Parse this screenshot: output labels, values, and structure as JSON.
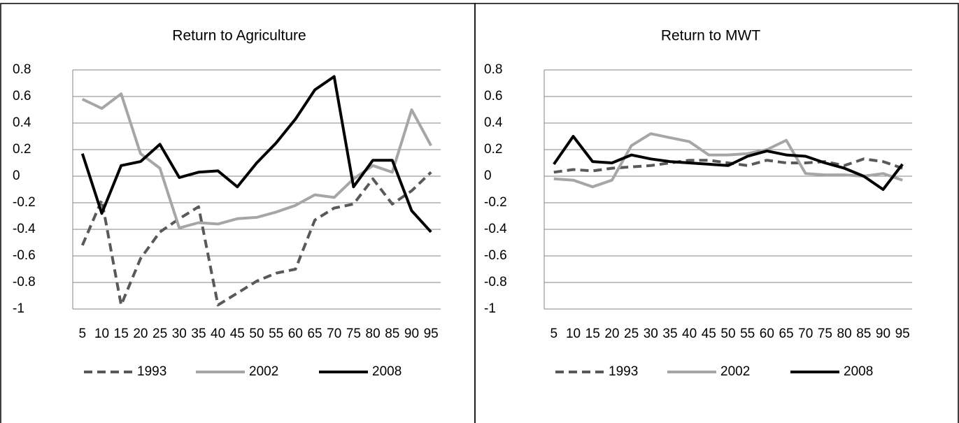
{
  "chart_data": [
    {
      "type": "line",
      "title": "Return to Agriculture",
      "categories": [
        "5",
        "10",
        "15",
        "20",
        "25",
        "30",
        "35",
        "40",
        "45",
        "50",
        "55",
        "60",
        "65",
        "70",
        "75",
        "80",
        "85",
        "90",
        "95"
      ],
      "ylim": [
        -1,
        0.8
      ],
      "yticks": [
        0.8,
        0.6,
        0.4,
        0.2,
        0,
        -0.2,
        -0.4,
        -0.6,
        -0.8,
        -1
      ],
      "grid": true,
      "legend": "bottom",
      "series": [
        {
          "name": "1993",
          "color": "#595959",
          "dashed": true,
          "values": [
            -0.52,
            -0.18,
            -0.97,
            -0.62,
            -0.42,
            -0.32,
            -0.23,
            -0.97,
            -0.88,
            -0.79,
            -0.73,
            -0.7,
            -0.33,
            -0.24,
            -0.21,
            -0.02,
            -0.21,
            -0.11,
            0.03
          ]
        },
        {
          "name": "2002",
          "color": "#a6a6a6",
          "dashed": false,
          "values": [
            0.58,
            0.51,
            0.62,
            0.17,
            0.06,
            -0.39,
            -0.35,
            -0.36,
            -0.32,
            -0.31,
            -0.27,
            -0.22,
            -0.14,
            -0.16,
            -0.02,
            0.08,
            0.03,
            0.5,
            0.23
          ]
        },
        {
          "name": "2008",
          "color": "#000000",
          "dashed": false,
          "values": [
            0.17,
            -0.28,
            0.08,
            0.11,
            0.24,
            -0.01,
            0.03,
            0.04,
            -0.08,
            0.1,
            0.25,
            0.43,
            0.65,
            0.75,
            -0.08,
            0.12,
            0.12,
            -0.26,
            -0.42
          ]
        }
      ]
    },
    {
      "type": "line",
      "title": "Return to MWT",
      "categories": [
        "5",
        "10",
        "15",
        "20",
        "25",
        "30",
        "35",
        "40",
        "45",
        "50",
        "55",
        "60",
        "65",
        "70",
        "75",
        "80",
        "85",
        "90",
        "95"
      ],
      "ylim": [
        -1,
        0.8
      ],
      "yticks": [
        0.8,
        0.6,
        0.4,
        0.2,
        0,
        -0.2,
        -0.4,
        -0.6,
        -0.8,
        -1
      ],
      "grid": true,
      "legend": "bottom",
      "series": [
        {
          "name": "1993",
          "color": "#595959",
          "dashed": true,
          "values": [
            0.03,
            0.05,
            0.04,
            0.06,
            0.07,
            0.08,
            0.1,
            0.12,
            0.12,
            0.1,
            0.08,
            0.12,
            0.1,
            0.1,
            0.11,
            0.08,
            0.13,
            0.11,
            0.06
          ]
        },
        {
          "name": "2002",
          "color": "#a6a6a6",
          "dashed": false,
          "values": [
            -0.02,
            -0.03,
            -0.08,
            -0.03,
            0.23,
            0.32,
            0.29,
            0.26,
            0.16,
            0.16,
            0.17,
            0.2,
            0.27,
            0.02,
            0.01,
            0.01,
            0.0,
            0.02,
            -0.03
          ]
        },
        {
          "name": "2008",
          "color": "#000000",
          "dashed": false,
          "values": [
            0.09,
            0.3,
            0.11,
            0.1,
            0.16,
            0.13,
            0.11,
            0.1,
            0.09,
            0.08,
            0.15,
            0.19,
            0.16,
            0.15,
            0.1,
            0.06,
            0.0,
            -0.1,
            0.09
          ]
        }
      ]
    }
  ]
}
